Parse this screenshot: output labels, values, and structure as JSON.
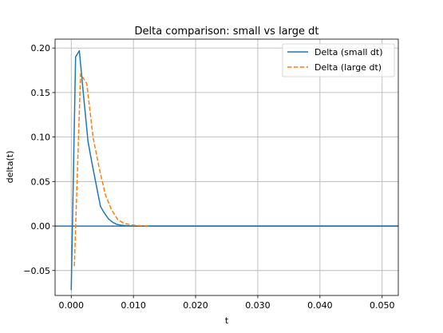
{
  "chart_data": {
    "type": "line",
    "title": "Delta comparison: small vs large dt",
    "xlabel": "t",
    "ylabel": "delta(t)",
    "xlim": [
      -0.0026,
      0.0526
    ],
    "ylim": [
      -0.078,
      0.21
    ],
    "x_ticks": [
      0.0,
      0.01,
      0.02,
      0.03,
      0.04,
      0.05
    ],
    "x_tick_labels": [
      "0.000",
      "0.010",
      "0.020",
      "0.030",
      "0.040",
      "0.050"
    ],
    "y_ticks": [
      -0.05,
      0.0,
      0.05,
      0.1,
      0.15,
      0.2
    ],
    "y_tick_labels": [
      "−0.05",
      "0.00",
      "0.05",
      "0.10",
      "0.15",
      "0.20"
    ],
    "grid": true,
    "legend_position": "top-right",
    "series": [
      {
        "name": "Delta (small dt)",
        "color": "#1f77b4",
        "dash": "solid",
        "x": [
          0.0,
          0.0007,
          0.0013,
          0.002,
          0.0027,
          0.0033,
          0.004,
          0.0047,
          0.0053,
          0.006,
          0.0067,
          0.0073,
          0.008,
          0.0087,
          0.0093,
          0.01,
          0.011,
          0.012,
          0.013,
          0.015,
          0.02,
          0.03,
          0.04,
          0.05,
          0.0526
        ],
        "y": [
          -0.072,
          0.19,
          0.197,
          0.145,
          0.095,
          0.072,
          0.047,
          0.022,
          0.015,
          0.008,
          0.004,
          0.002,
          0.001,
          0.0005,
          0.0002,
          0.0001,
          0.0,
          0.0,
          0.0,
          0.0,
          0.0,
          0.0,
          0.0,
          0.0,
          0.0
        ]
      },
      {
        "name": "Delta (large dt)",
        "color": "#ff7f0e",
        "dash": "dashed",
        "x": [
          0.0005,
          0.0015,
          0.0025,
          0.0035,
          0.0045,
          0.0055,
          0.0065,
          0.0075,
          0.0085,
          0.0095,
          0.0105,
          0.0115,
          0.0125
        ],
        "y": [
          -0.045,
          0.171,
          0.16,
          0.1,
          0.065,
          0.035,
          0.018,
          0.007,
          0.003,
          0.0015,
          0.0007,
          0.0003,
          0.0
        ]
      }
    ]
  }
}
